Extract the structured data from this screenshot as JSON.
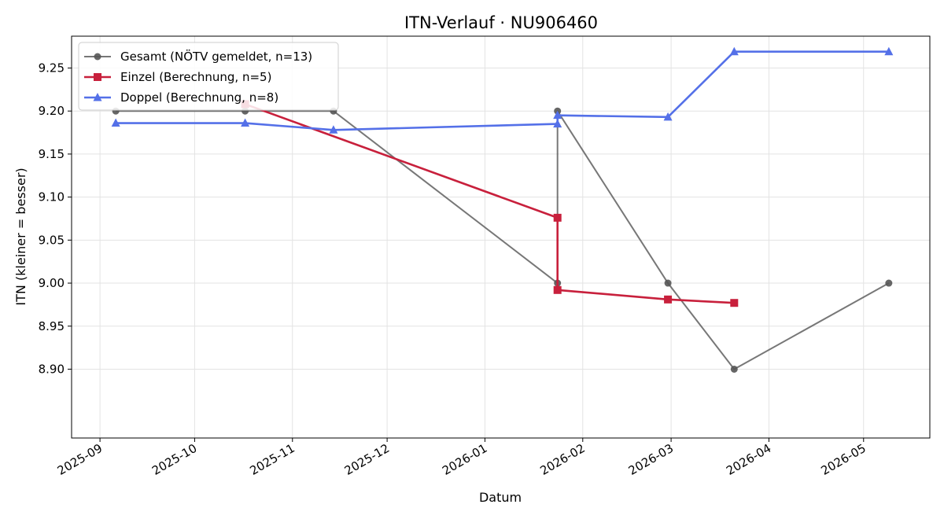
{
  "chart_data": {
    "type": "line",
    "title": "ITN-Verlauf · NU906460",
    "xlabel": "Datum",
    "ylabel": "ITN  (kleiner = besser)",
    "x_ticks": [
      "2025-09",
      "2025-10",
      "2025-11",
      "2025-12",
      "2026-01",
      "2026-02",
      "2026-03",
      "2026-04",
      "2026-05"
    ],
    "y_ticks": [
      "8.90",
      "8.95",
      "9.00",
      "9.05",
      "9.10",
      "9.15",
      "9.20",
      "9.25"
    ],
    "xlim": [
      "2025-08-23",
      "2026-05-22"
    ],
    "ylim": [
      8.82,
      9.287
    ],
    "grid": true,
    "legend_position": "top-left",
    "series": [
      {
        "name": "Gesamt (NÖTV gemeldet, n=13)",
        "color": "#555555",
        "marker": "circle",
        "points": [
          {
            "x": "2025-09-06",
            "y": 9.2
          },
          {
            "x": "2025-10-17",
            "y": 9.2
          },
          {
            "x": "2025-11-14",
            "y": 9.2
          },
          {
            "x": "2026-01-24",
            "y": 9.0
          },
          {
            "x": "2026-01-24",
            "y": 9.2
          },
          {
            "x": "2026-02-28",
            "y": 9.0
          },
          {
            "x": "2026-03-21",
            "y": 8.9
          },
          {
            "x": "2026-05-09",
            "y": 9.0
          }
        ]
      },
      {
        "name": "Einzel (Berechnung, n=5)",
        "color": "#c8203c",
        "marker": "square",
        "points": [
          {
            "x": "2025-10-17",
            "y": 9.208
          },
          {
            "x": "2026-01-24",
            "y": 9.076
          },
          {
            "x": "2026-01-24",
            "y": 8.992
          },
          {
            "x": "2026-02-28",
            "y": 8.981
          },
          {
            "x": "2026-03-21",
            "y": 8.977
          }
        ]
      },
      {
        "name": "Doppel (Berechnung, n=8)",
        "color": "#5470e8",
        "marker": "triangle",
        "points": [
          {
            "x": "2025-09-06",
            "y": 9.186
          },
          {
            "x": "2025-10-17",
            "y": 9.186
          },
          {
            "x": "2025-11-14",
            "y": 9.178
          },
          {
            "x": "2026-01-24",
            "y": 9.185
          },
          {
            "x": "2026-01-24",
            "y": 9.195
          },
          {
            "x": "2026-02-28",
            "y": 9.193
          },
          {
            "x": "2026-03-21",
            "y": 9.269
          },
          {
            "x": "2026-05-09",
            "y": 9.269
          }
        ]
      }
    ]
  }
}
